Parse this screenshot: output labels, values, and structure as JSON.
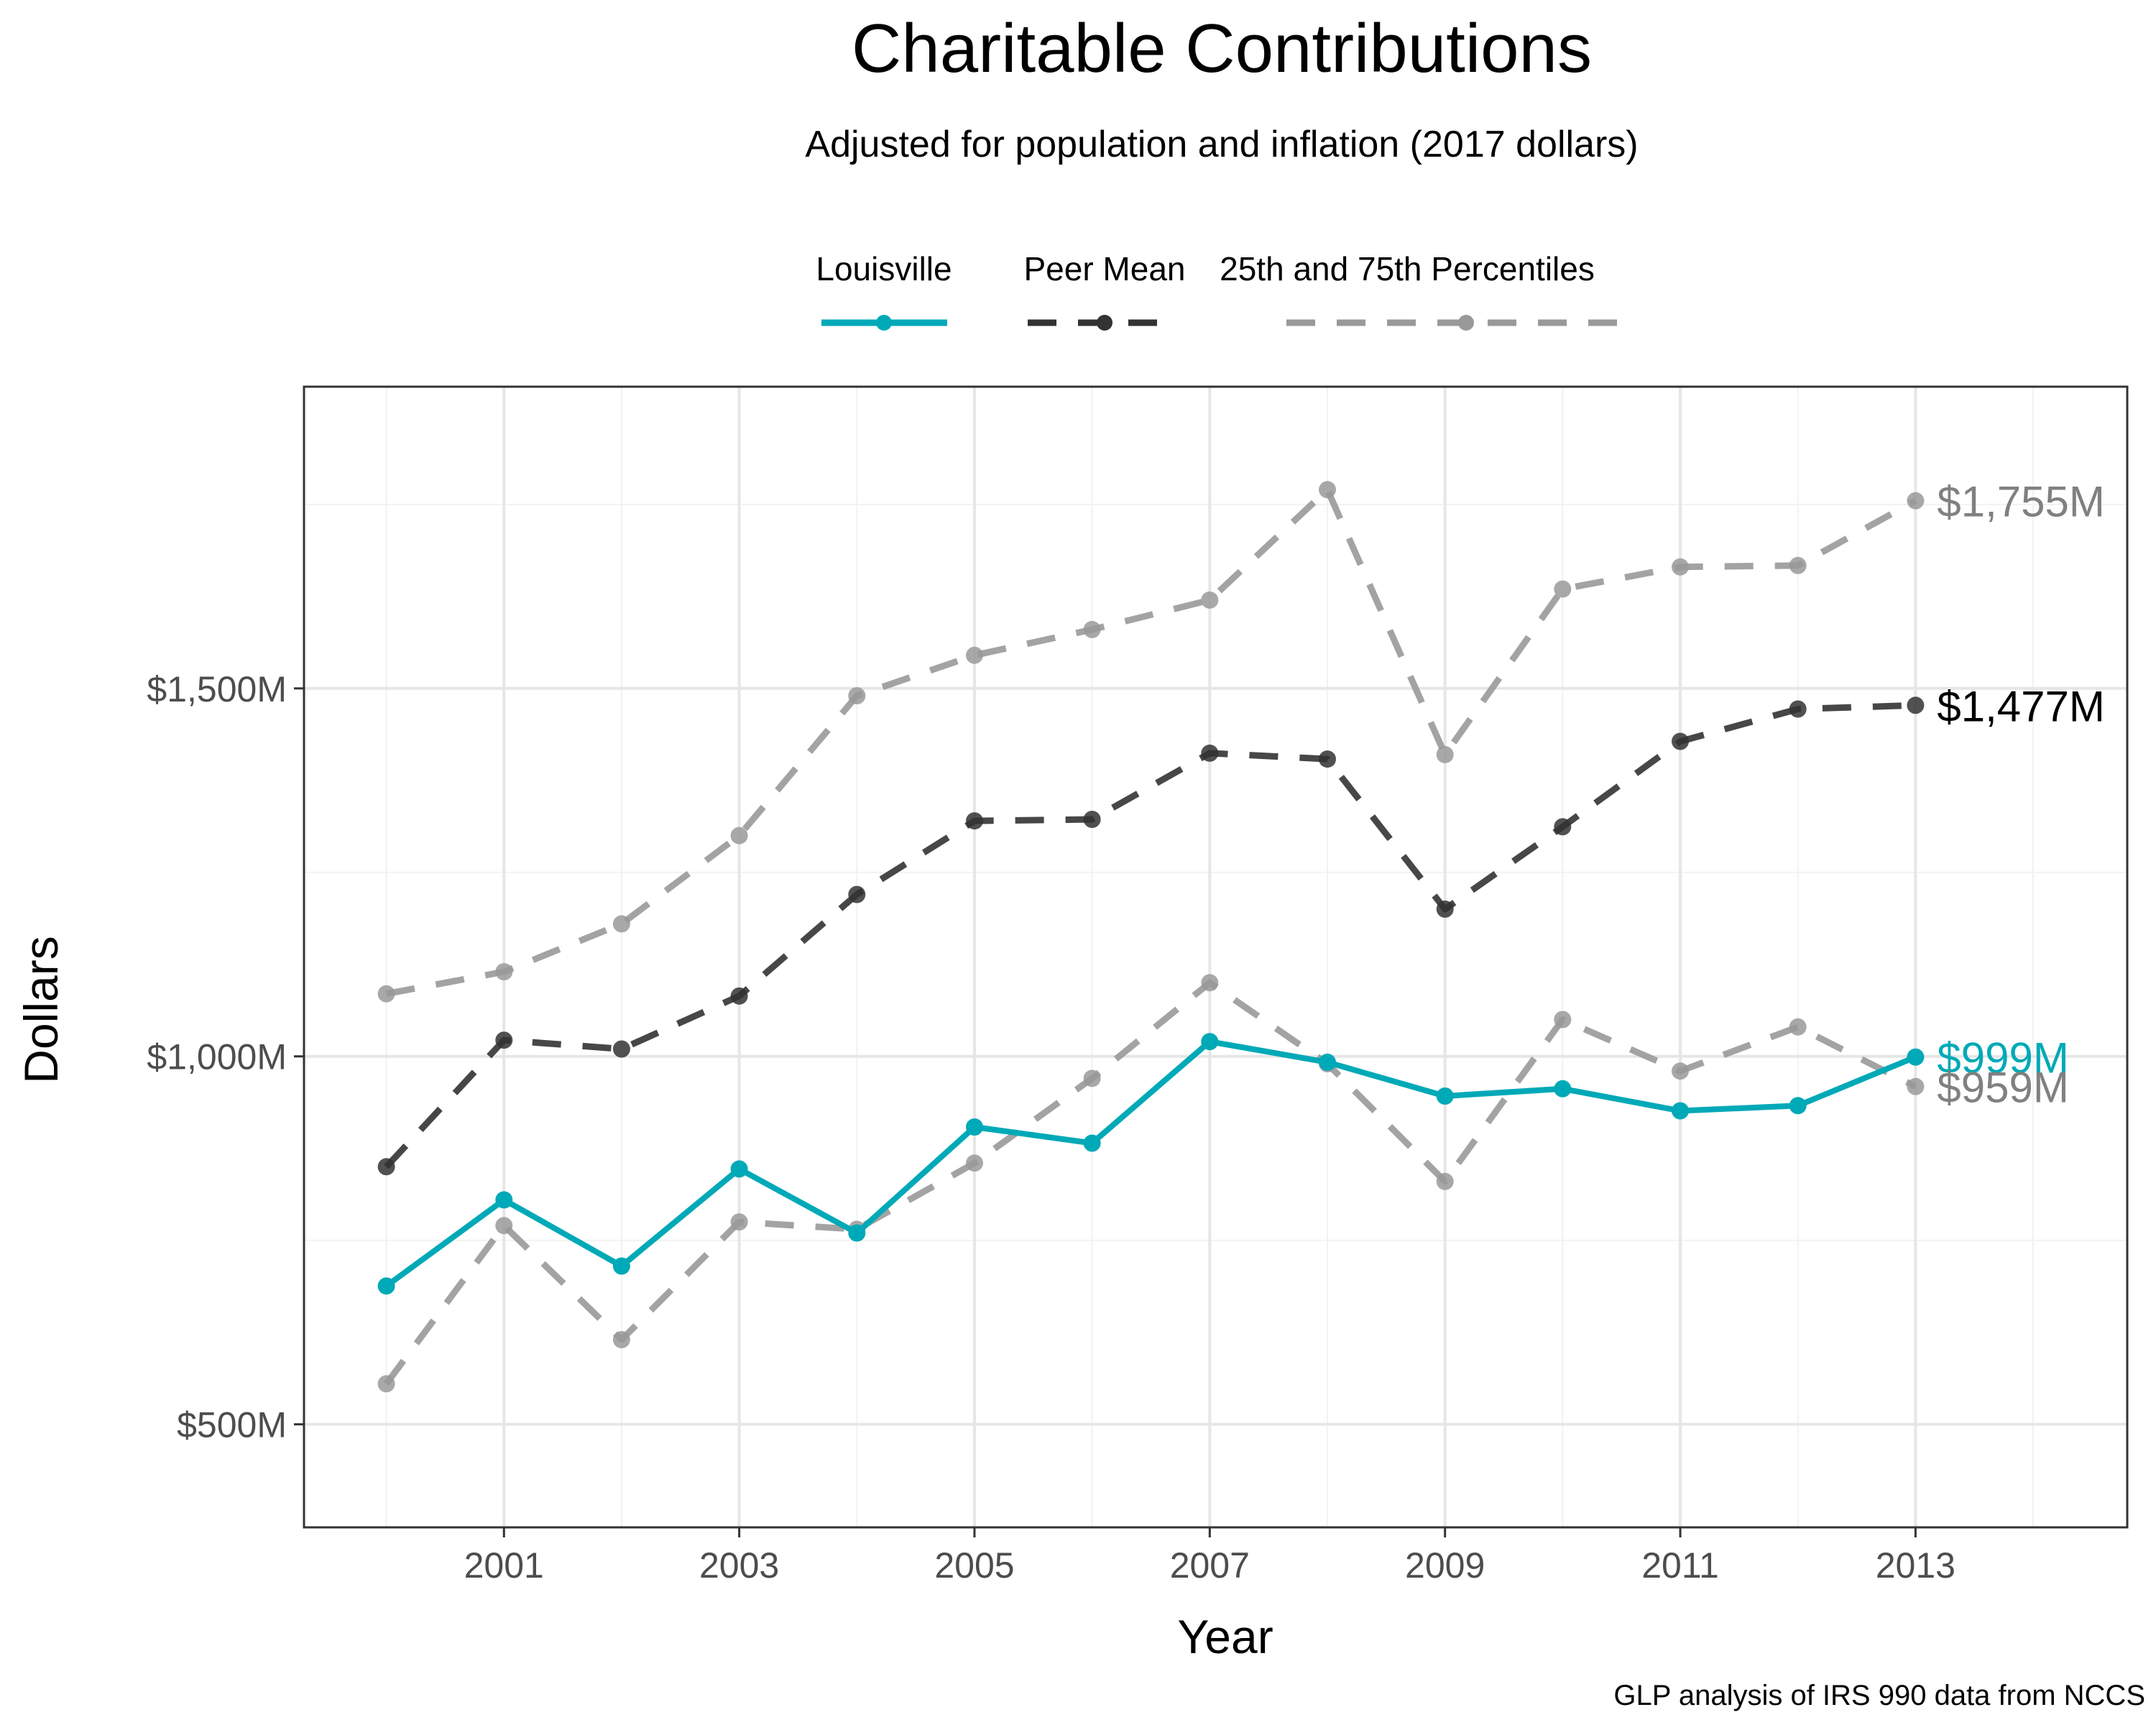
{
  "title": "Charitable Contributions",
  "subtitle": "Adjusted for population and inflation (2017 dollars)",
  "caption": "GLP analysis of IRS 990 data from NCCS",
  "legend": {
    "items": [
      {
        "label": "Louisville",
        "color": "#00A9B7",
        "style": "solid"
      },
      {
        "label": "Peer Mean",
        "color": "#333333",
        "style": "dashed"
      },
      {
        "label": "25th and 75th Percentiles",
        "color": "#999999",
        "style": "dashed"
      }
    ]
  },
  "chart_data": {
    "type": "line",
    "title": "Charitable Contributions",
    "subtitle": "Adjusted for population and inflation (2017 dollars)",
    "xlabel": "Year",
    "ylabel": "Dollars",
    "x": [
      2000,
      2001,
      2002,
      2003,
      2004,
      2005,
      2006,
      2007,
      2008,
      2009,
      2010,
      2011,
      2012,
      2013
    ],
    "xlim": [
      1999.3,
      2014.8
    ],
    "ylim": [
      360,
      1910
    ],
    "x_ticks": [
      {
        "value": 2001,
        "label": "2001"
      },
      {
        "value": 2003,
        "label": "2003"
      },
      {
        "value": 2005,
        "label": "2005"
      },
      {
        "value": 2007,
        "label": "2007"
      },
      {
        "value": 2009,
        "label": "2009"
      },
      {
        "value": 2011,
        "label": "2011"
      },
      {
        "value": 2013,
        "label": "2013"
      }
    ],
    "x_minor_ticks": [
      2000,
      2002,
      2004,
      2006,
      2008,
      2010,
      2012,
      2014
    ],
    "y_ticks": [
      {
        "value": 500,
        "label": "$500M"
      },
      {
        "value": 1000,
        "label": "$1,000M"
      },
      {
        "value": 1500,
        "label": "$1,500M"
      }
    ],
    "y_minor_ticks": [
      750,
      1250,
      1750
    ],
    "grid": true,
    "legend_position": "top",
    "series": [
      {
        "name": "25th and 75th Percentiles",
        "role": "percentile_75",
        "color": "#999999",
        "style": "dashed",
        "values": [
          1085,
          1115,
          1180,
          1300,
          1490,
          1545,
          1580,
          1620,
          1770,
          1410,
          1635,
          1665,
          1667,
          1755
        ]
      },
      {
        "name": "25th and 75th Percentiles",
        "role": "percentile_25",
        "color": "#999999",
        "style": "dashed",
        "values": [
          555,
          770,
          615,
          775,
          765,
          855,
          970,
          1100,
          990,
          830,
          1050,
          980,
          1040,
          959
        ]
      },
      {
        "name": "Peer Mean",
        "color": "#333333",
        "style": "dashed",
        "values": [
          850,
          1022,
          1010,
          1082,
          1220,
          1320,
          1322,
          1412,
          1404,
          1200,
          1312,
          1428,
          1472,
          1477
        ]
      },
      {
        "name": "Louisville",
        "color": "#00A9B7",
        "style": "solid",
        "values": [
          688,
          805,
          715,
          847,
          760,
          904,
          882,
          1020,
          992,
          946,
          956,
          926,
          933,
          999
        ]
      }
    ],
    "end_labels": [
      {
        "text": "$1,755M",
        "value": 1755,
        "color": "#808080"
      },
      {
        "text": "$1,477M",
        "value": 1477,
        "color": "#000000"
      },
      {
        "text": "$999M",
        "value": 999,
        "color": "#00A9B7"
      },
      {
        "text": "$959M",
        "value": 959,
        "color": "#808080"
      }
    ]
  }
}
